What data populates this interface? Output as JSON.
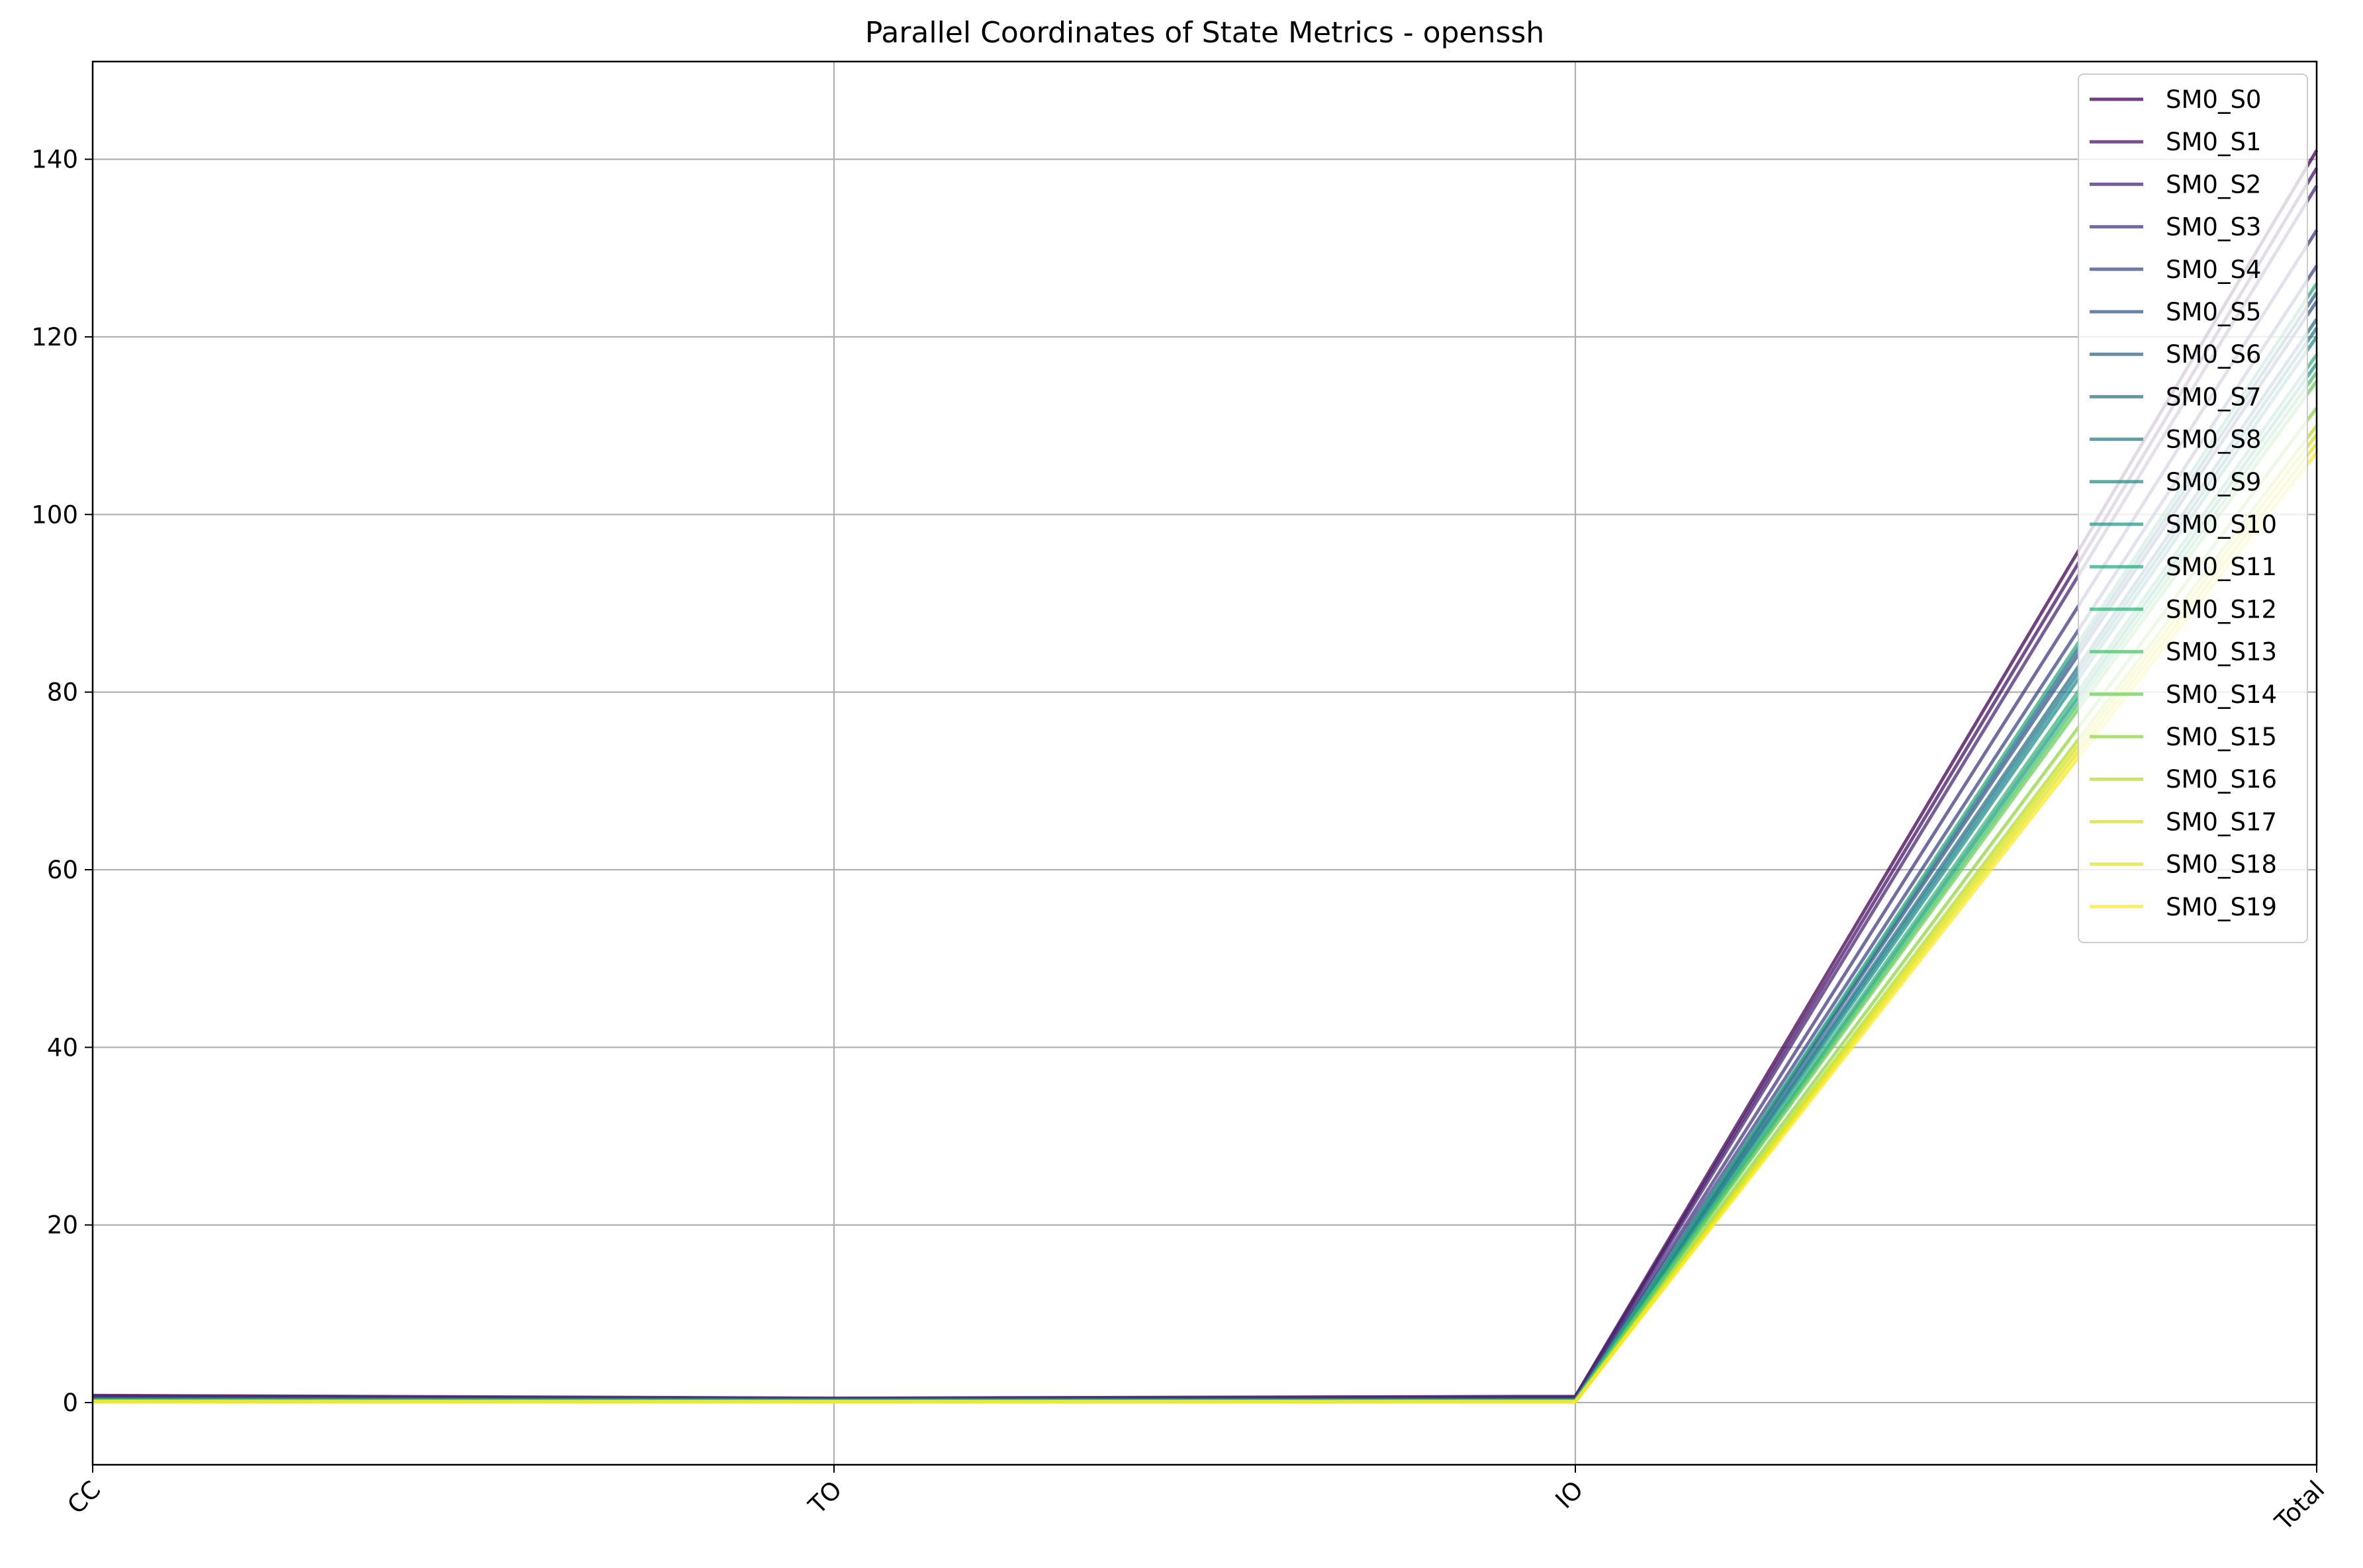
{
  "chart_data": {
    "type": "parallel_coordinates",
    "title": "Parallel Coordinates of State Metrics - openssh",
    "axes": [
      "CC",
      "TO",
      "IO",
      "Total"
    ],
    "ylim": [
      -7,
      151
    ],
    "yticks": [
      0,
      20,
      40,
      60,
      80,
      100,
      120,
      140
    ],
    "grid": true,
    "legend_position": "top-right",
    "colormap": "viridis",
    "series": [
      {
        "name": "SM0_S0",
        "color": "#440154",
        "values": [
          0.8,
          0.5,
          0.7,
          141
        ]
      },
      {
        "name": "SM0_S1",
        "color": "#481668",
        "values": [
          0.7,
          0.4,
          0.6,
          139
        ]
      },
      {
        "name": "SM0_S2",
        "color": "#482878",
        "values": [
          0.6,
          0.4,
          0.5,
          137
        ]
      },
      {
        "name": "SM0_S3",
        "color": "#443983",
        "values": [
          0.5,
          0.3,
          0.4,
          132
        ]
      },
      {
        "name": "SM0_S4",
        "color": "#3e4989",
        "values": [
          0.5,
          0.3,
          0.4,
          128
        ]
      },
      {
        "name": "SM0_S5",
        "color": "#375a8c",
        "values": [
          0.4,
          0.3,
          0.3,
          124
        ]
      },
      {
        "name": "SM0_S6",
        "color": "#31688e",
        "values": [
          0.4,
          0.3,
          0.3,
          125
        ]
      },
      {
        "name": "SM0_S7",
        "color": "#2b758e",
        "values": [
          0.4,
          0.3,
          0.3,
          122
        ]
      },
      {
        "name": "SM0_S8",
        "color": "#26828e",
        "values": [
          0.3,
          0.2,
          0.3,
          121
        ]
      },
      {
        "name": "SM0_S9",
        "color": "#21918c",
        "values": [
          0.3,
          0.2,
          0.2,
          120
        ]
      },
      {
        "name": "SM0_S10",
        "color": "#1f9e89",
        "values": [
          0.3,
          0.2,
          0.2,
          117
        ]
      },
      {
        "name": "SM0_S11",
        "color": "#25ab82",
        "values": [
          0.3,
          0.2,
          0.2,
          126
        ]
      },
      {
        "name": "SM0_S12",
        "color": "#35b779",
        "values": [
          0.2,
          0.2,
          0.2,
          118
        ]
      },
      {
        "name": "SM0_S13",
        "color": "#4ec36b",
        "values": [
          0.2,
          0.2,
          0.2,
          116
        ]
      },
      {
        "name": "SM0_S14",
        "color": "#6ccd5a",
        "values": [
          0.2,
          0.1,
          0.2,
          115
        ]
      },
      {
        "name": "SM0_S15",
        "color": "#8fd744",
        "values": [
          0.2,
          0.1,
          0.1,
          112
        ]
      },
      {
        "name": "SM0_S16",
        "color": "#b5de2b",
        "values": [
          0.1,
          0.1,
          0.1,
          110
        ]
      },
      {
        "name": "SM0_S17",
        "color": "#d8e219",
        "values": [
          0.1,
          0.1,
          0.1,
          109
        ]
      },
      {
        "name": "SM0_S18",
        "color": "#e4e419",
        "values": [
          0.1,
          0.1,
          0.1,
          108
        ]
      },
      {
        "name": "SM0_S19",
        "color": "#fde725",
        "values": [
          0.1,
          0.1,
          0.1,
          107
        ]
      }
    ]
  }
}
